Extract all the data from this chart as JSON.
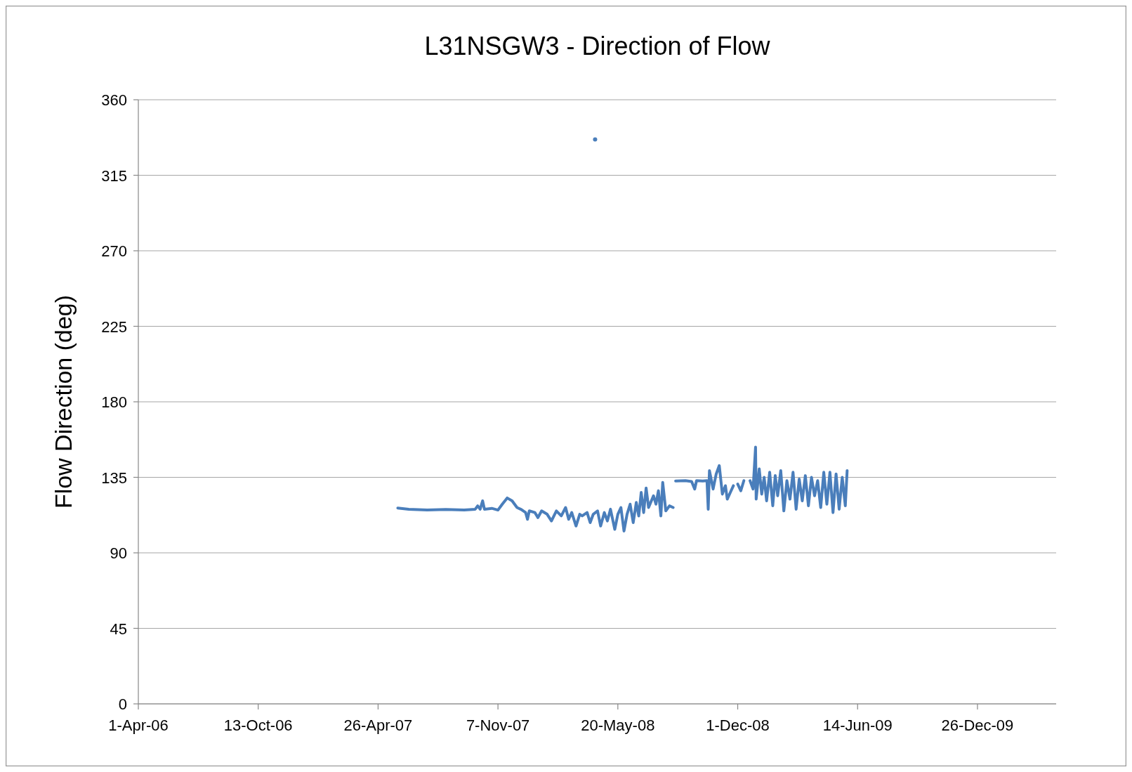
{
  "chart_data": {
    "type": "line",
    "title": "L31NSGW3 - Direction of Flow",
    "ylabel": "Flow Direction (deg)",
    "xlim": [
      "2006-04-01",
      "2010-05-03"
    ],
    "xticks": [
      {
        "value": "2006-04-01",
        "label": "1-Apr-06"
      },
      {
        "value": "2006-10-13",
        "label": "13-Oct-06"
      },
      {
        "value": "2007-04-26",
        "label": "26-Apr-07"
      },
      {
        "value": "2007-11-07",
        "label": "7-Nov-07"
      },
      {
        "value": "2008-05-20",
        "label": "20-May-08"
      },
      {
        "value": "2008-12-01",
        "label": "1-Dec-08"
      },
      {
        "value": "2009-06-14",
        "label": "14-Jun-09"
      },
      {
        "value": "2009-12-26",
        "label": "26-Dec-09"
      }
    ],
    "ylim": [
      0,
      360
    ],
    "yticks": [
      0,
      45,
      90,
      135,
      180,
      225,
      270,
      315,
      360
    ],
    "grid": "y",
    "line_style": "solid",
    "x": [
      "2007-05-28",
      "2007-06-15",
      "2007-07-15",
      "2007-08-14",
      "2007-09-13",
      "2007-10-01",
      "2007-10-05",
      "2007-10-09",
      "2007-10-13",
      "2007-10-16",
      "2007-10-28",
      "2007-11-07",
      "2007-11-14",
      "2007-11-22",
      "2007-11-30",
      "2007-12-08",
      "2007-12-15",
      "2007-12-22",
      "2007-12-25",
      "2007-12-28",
      "2008-01-06",
      "2008-01-11",
      "2008-01-17",
      "2008-01-26",
      "2008-02-02",
      "2008-02-10",
      "2008-02-18",
      "2008-02-25",
      "2008-03-01",
      "2008-03-06",
      "2008-03-13",
      "2008-03-19",
      "2008-03-23",
      "2008-03-31",
      "2008-04-05",
      "2008-04-10",
      "2008-04-17",
      "2008-04-22",
      "2008-04-28",
      "2008-05-03",
      "2008-05-08",
      "2008-05-15",
      "2008-05-20",
      "2008-05-25",
      "2008-05-30",
      "2008-06-04",
      "2008-06-09",
      "2008-06-14",
      "2008-06-19",
      "2008-06-23",
      "2008-06-27",
      "2008-07-01",
      "2008-07-05",
      "2008-07-09",
      "2008-07-17",
      "2008-07-21",
      "2008-07-25",
      "2008-07-29",
      "2008-08-01",
      "2008-08-06",
      "2008-08-12",
      "2008-08-18",
      "2008-08-20",
      "2008-08-22",
      "2008-09-07",
      "2008-09-17",
      "2008-09-22",
      "2008-09-25",
      "2008-10-05",
      "2008-10-12",
      "2008-10-14",
      "2008-10-16",
      "2008-10-22",
      "2008-10-27",
      "2008-11-01",
      "2008-11-06",
      "2008-11-11",
      "2008-11-14",
      "2008-11-19",
      "2008-11-24",
      "2008-11-27",
      "2008-12-01",
      "2008-12-06",
      "2008-12-11",
      "2008-12-16",
      "2008-12-21",
      "2008-12-26",
      "2008-12-30",
      "2008-12-31",
      "2009-01-05",
      "2009-01-09",
      "2009-01-13",
      "2009-01-17",
      "2009-01-22",
      "2009-01-27",
      "2009-01-31",
      "2009-02-04",
      "2009-02-09",
      "2009-02-14",
      "2009-02-19",
      "2009-02-24",
      "2009-03-01",
      "2009-03-06",
      "2009-03-11",
      "2009-03-16",
      "2009-03-21",
      "2009-03-26",
      "2009-03-31",
      "2009-04-05",
      "2009-04-10",
      "2009-04-15",
      "2009-04-20",
      "2009-04-25",
      "2009-04-30",
      "2009-05-05",
      "2009-05-10",
      "2009-05-15",
      "2009-05-20",
      "2009-05-25",
      "2009-05-28"
    ],
    "series": [
      {
        "color": "#4a7ebb",
        "marker": "none",
        "values": [
          116.7,
          116,
          115.5,
          115.8,
          115.5,
          116,
          118,
          116,
          121,
          116,
          116.5,
          115.5,
          119,
          122.7,
          121,
          117,
          115.8,
          114,
          110,
          115,
          114,
          111,
          115,
          113,
          109,
          115,
          112,
          117,
          110,
          114,
          106,
          113,
          112,
          114,
          108,
          113,
          115,
          106,
          114,
          109,
          116,
          104,
          113,
          117,
          103,
          113,
          119,
          108,
          120,
          112,
          126,
          114,
          128.6,
          117,
          124,
          119,
          127,
          112,
          132,
          115,
          118,
          117,
          null,
          132.8,
          133,
          132.5,
          128,
          133,
          132.8,
          133,
          116,
          139,
          128,
          137,
          142,
          125,
          130,
          122,
          126,
          130,
          null,
          131,
          127,
          133,
          null,
          133,
          128,
          153,
          122,
          140,
          125,
          135,
          121,
          138,
          118,
          136,
          124,
          139,
          115,
          133,
          122,
          138,
          116,
          134,
          121,
          136,
          118,
          135,
          124,
          133,
          117,
          138,
          119,
          138,
          114,
          137,
          116,
          135,
          118,
          139
        ]
      },
      {
        "type": "scatter",
        "color": "#4a7ebb",
        "marker": "circle",
        "x": [
          "2008-04-13"
        ],
        "values": [
          336.4
        ]
      }
    ]
  }
}
